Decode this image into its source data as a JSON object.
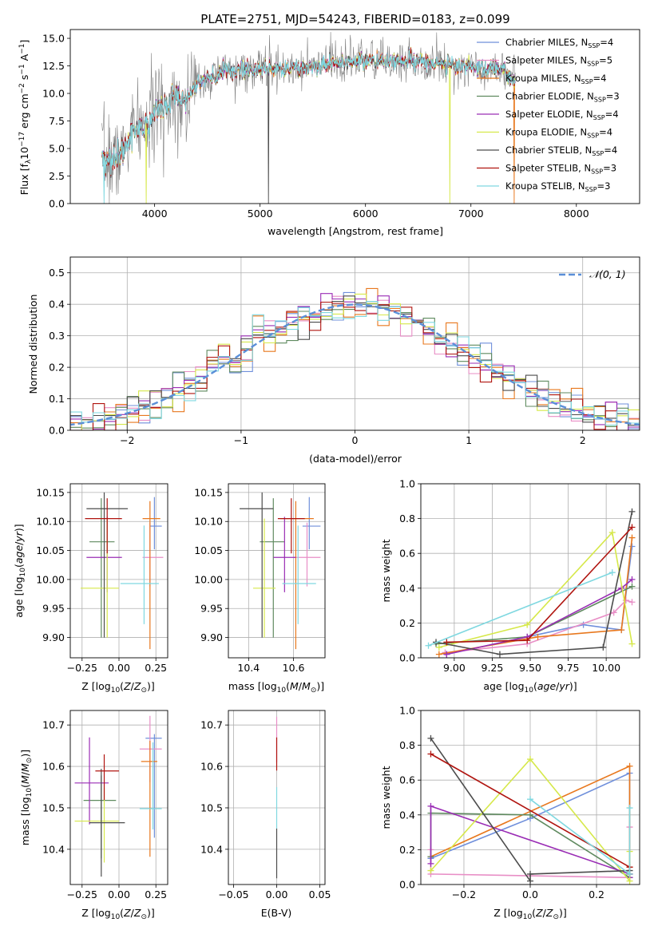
{
  "colors": {
    "blue": "#6f8fdb",
    "pink": "#e88ec6",
    "orange": "#e8781e",
    "green": "#5f8a5f",
    "purple": "#9a2db5",
    "yellow": "#d6e84a",
    "gray": "#4c4c4c",
    "red": "#b0140f",
    "cyan": "#7fd8e0",
    "normal": "#5b8fd8",
    "grid": "#b0b0b0"
  },
  "chart_data": [
    {
      "id": "spectrum",
      "type": "line",
      "title": "PLATE=2751, MJD=54243, FIBERID=0183, z=0.099",
      "xlabel": "wavelength [Angstrom, rest frame]",
      "ylabel": "Flux [f",
      "xlim": [
        3200,
        8600
      ],
      "ylim": [
        0,
        15.8
      ],
      "xticks": [
        4000,
        5000,
        6000,
        7000,
        8000
      ],
      "yticks": [
        "0.0",
        "2.5",
        "5.0",
        "7.5",
        "10.0",
        "12.5",
        "15.0"
      ],
      "grid": false,
      "legend_position": "right",
      "legend": [
        {
          "label": "Chabrier MILES, N",
          "n": "4",
          "color": "blue"
        },
        {
          "label": "Salpeter MILES, N",
          "n": "5",
          "color": "pink"
        },
        {
          "label": "Kroupa MILES, N",
          "n": "4",
          "color": "orange"
        },
        {
          "label": "Chabrier ELODIE, N",
          "n": "3",
          "color": "green"
        },
        {
          "label": "Salpeter ELODIE, N",
          "n": "4",
          "color": "purple"
        },
        {
          "label": "Kroupa ELODIE, N",
          "n": "4",
          "color": "yellow"
        },
        {
          "label": "Chabrier STELIB, N",
          "n": "4",
          "color": "gray"
        },
        {
          "label": "Salpeter STELIB, N",
          "n": "3",
          "color": "red"
        },
        {
          "label": "Kroupa STELIB, N",
          "n": "3",
          "color": "cyan"
        }
      ],
      "continuum": {
        "x": [
          3500,
          3600,
          3700,
          3800,
          3900,
          4000,
          4100,
          4200,
          4300,
          4400,
          4500,
          4700,
          5000,
          5300,
          5600,
          5900,
          6200,
          6500,
          6800,
          7100,
          7300,
          7400
        ],
        "y": [
          3.8,
          4.0,
          5.0,
          6.5,
          6.8,
          8.0,
          9.0,
          9.8,
          9.8,
          10.8,
          11.3,
          12.0,
          12.3,
          12.2,
          12.6,
          12.9,
          13.0,
          12.9,
          12.6,
          12.4,
          12.2,
          11.0
        ]
      },
      "sky_line_dips": [
        {
          "x": 3520,
          "series": "cyan"
        },
        {
          "x": 3920,
          "series": "yellow"
        },
        {
          "x": 5080,
          "series": "gray"
        },
        {
          "x": 6800,
          "series": "yellow"
        },
        {
          "x": 7410,
          "series": "orange"
        }
      ]
    },
    {
      "id": "residuals",
      "type": "histogram",
      "xlabel": "(data-model)/error",
      "ylabel": "Normed distribution",
      "xlim": [
        -2.5,
        2.5
      ],
      "ylim": [
        0,
        0.55
      ],
      "xticks": [
        "−2",
        "−1",
        "0",
        "1",
        "2"
      ],
      "yticks": [
        "0.0",
        "0.1",
        "0.2",
        "0.3",
        "0.4",
        "0.5"
      ],
      "grid": true,
      "bin_width": 0.1,
      "legend_position": "top-right",
      "legend": [
        {
          "label": "𝒩(0, 1)",
          "color": "normal"
        }
      ]
    },
    {
      "id": "age-vs-Z",
      "type": "errorbar",
      "xlabel": "Z [log",
      "ylabel": "age  [log",
      "xlim": [
        -0.33,
        0.33
      ],
      "ylim": [
        9.865,
        10.165
      ],
      "xticks": [
        "−0.25",
        "0.00",
        "0.25"
      ],
      "yticks": [
        "9.90",
        "9.95",
        "10.00",
        "10.05",
        "10.10",
        "10.15"
      ],
      "grid": true,
      "points": [
        {
          "color": "blue",
          "x": 0.24,
          "xerr": [
            0.03,
            0.05
          ],
          "y": 10.092,
          "yerr": [
            0.04,
            0.05
          ]
        },
        {
          "color": "pink",
          "x": 0.21,
          "xerr": [
            0.05,
            0.09
          ],
          "y": 10.038,
          "yerr": [
            0.05,
            0.06
          ]
        },
        {
          "color": "orange",
          "x": 0.21,
          "xerr": [
            0.05,
            0.07
          ],
          "y": 10.105,
          "yerr": [
            0.225,
            0.03
          ]
        },
        {
          "color": "green",
          "x": -0.12,
          "xerr": [
            0.08,
            0.09
          ],
          "y": 10.065,
          "yerr": [
            0.165,
            0.075
          ]
        },
        {
          "color": "purple",
          "x": -0.08,
          "xerr": [
            0.14,
            0.1
          ],
          "y": 10.038,
          "yerr": [
            0.06,
            0.07
          ]
        },
        {
          "color": "yellow",
          "x": -0.08,
          "xerr": [
            0.18,
            0.08
          ],
          "y": 9.985,
          "yerr": [
            0.085,
            0.12
          ]
        },
        {
          "color": "gray",
          "x": -0.1,
          "xerr": [
            0.12,
            0.16
          ],
          "y": 10.122,
          "yerr": [
            0.222,
            0.028
          ]
        },
        {
          "color": "red",
          "x": -0.08,
          "xerr": [
            0.15,
            0.1
          ],
          "y": 10.105,
          "yerr": [
            0.06,
            0.035
          ]
        },
        {
          "color": "cyan",
          "x": 0.17,
          "xerr": [
            0.16,
            0.1
          ],
          "y": 9.993,
          "yerr": [
            0.07,
            0.1
          ]
        }
      ]
    },
    {
      "id": "age-vs-mass",
      "type": "errorbar",
      "xlabel": "mass [log",
      "ylabel": "",
      "xlim": [
        10.31,
        10.74
      ],
      "ylim": [
        9.865,
        10.165
      ],
      "xticks": [
        "10.4",
        "10.6"
      ],
      "yticks": [
        "9.90",
        "9.95",
        "10.00",
        "10.05",
        "10.10",
        "10.15"
      ],
      "grid": true,
      "points": [
        {
          "color": "blue",
          "x": 10.67,
          "xerr": [
            0.03,
            0.05
          ],
          "y": 10.092,
          "yerr": [
            0.04,
            0.05
          ]
        },
        {
          "color": "pink",
          "x": 10.66,
          "xerr": [
            0.06,
            0.06
          ],
          "y": 10.038,
          "yerr": [
            0.05,
            0.06
          ]
        },
        {
          "color": "orange",
          "x": 10.61,
          "xerr": [
            0.07,
            0.08
          ],
          "y": 10.105,
          "yerr": [
            0.225,
            0.03
          ]
        },
        {
          "color": "green",
          "x": 10.51,
          "xerr": [
            0.06,
            0.05
          ],
          "y": 10.065,
          "yerr": [
            0.165,
            0.075
          ]
        },
        {
          "color": "purple",
          "x": 10.56,
          "xerr": [
            0.05,
            0.05
          ],
          "y": 10.038,
          "yerr": [
            0.06,
            0.07
          ]
        },
        {
          "color": "yellow",
          "x": 10.47,
          "xerr": [
            0.05,
            0.05
          ],
          "y": 9.985,
          "yerr": [
            0.085,
            0.12
          ]
        },
        {
          "color": "gray",
          "x": 10.46,
          "xerr": [
            0.1,
            0.05
          ],
          "y": 10.122,
          "yerr": [
            0.222,
            0.028
          ]
        },
        {
          "color": "red",
          "x": 10.59,
          "xerr": [
            0.06,
            0.06
          ],
          "y": 10.105,
          "yerr": [
            0.06,
            0.035
          ]
        },
        {
          "color": "cyan",
          "x": 10.62,
          "xerr": [
            0.07,
            0.08
          ],
          "y": 9.993,
          "yerr": [
            0.07,
            0.1
          ]
        }
      ]
    },
    {
      "id": "massweight-vs-age",
      "type": "line",
      "xlabel": "age  [log",
      "ylabel": "mass weight",
      "xlim": [
        8.78,
        10.22
      ],
      "ylim": [
        0,
        1.0
      ],
      "xticks": [
        "9.00",
        "9.25",
        "9.50",
        "9.75",
        "10.00"
      ],
      "yticks": [
        "0.0",
        "0.2",
        "0.4",
        "0.6",
        "0.8",
        "1.0"
      ],
      "grid": true,
      "series": [
        {
          "color": "blue",
          "x": [
            8.95,
            9.48,
            9.85,
            10.1,
            10.17
          ],
          "y": [
            0.02,
            0.12,
            0.19,
            0.16,
            0.64
          ]
        },
        {
          "color": "pink",
          "x": [
            8.94,
            9.48,
            10.05,
            10.13,
            10.17
          ],
          "y": [
            0.03,
            0.08,
            0.26,
            0.33,
            0.32
          ]
        },
        {
          "color": "orange",
          "x": [
            8.9,
            9.55,
            10.1,
            10.17
          ],
          "y": [
            0.02,
            0.12,
            0.16,
            0.69
          ]
        },
        {
          "color": "green",
          "x": [
            8.88,
            9.48,
            10.17
          ],
          "y": [
            0.08,
            0.12,
            0.41
          ]
        },
        {
          "color": "purple",
          "x": [
            8.95,
            9.48,
            10.1,
            10.17
          ],
          "y": [
            0.02,
            0.12,
            0.4,
            0.45
          ]
        },
        {
          "color": "yellow",
          "x": [
            8.9,
            9.48,
            10.04,
            10.17
          ],
          "y": [
            0.06,
            0.19,
            0.72,
            0.08
          ]
        },
        {
          "color": "gray",
          "x": [
            8.88,
            9.3,
            9.98,
            10.17
          ],
          "y": [
            0.09,
            0.02,
            0.06,
            0.84
          ]
        },
        {
          "color": "red",
          "x": [
            8.95,
            9.48,
            10.17
          ],
          "y": [
            0.09,
            0.1,
            0.75
          ]
        },
        {
          "color": "cyan",
          "x": [
            8.83,
            10.04
          ],
          "y": [
            0.07,
            0.49
          ]
        }
      ]
    },
    {
      "id": "mass-vs-Z",
      "type": "errorbar",
      "xlabel": "Z [log",
      "ylabel": "mass [log",
      "xlim": [
        -0.33,
        0.33
      ],
      "ylim": [
        10.315,
        10.735
      ],
      "xticks": [
        "−0.25",
        "0.00",
        "0.25"
      ],
      "yticks": [
        "10.4",
        "10.5",
        "10.6",
        "10.7"
      ],
      "grid": true,
      "points": [
        {
          "color": "blue",
          "x": 0.24,
          "xerr": [
            0.06,
            0.05
          ],
          "y": 10.668,
          "yerr": [
            0.24,
            0.01
          ]
        },
        {
          "color": "pink",
          "x": 0.21,
          "xerr": [
            0.07,
            0.08
          ],
          "y": 10.642,
          "yerr": [
            0.08,
            0.08
          ]
        },
        {
          "color": "orange",
          "x": 0.21,
          "xerr": [
            0.06,
            0.05
          ],
          "y": 10.612,
          "yerr": [
            0.23,
            0.05
          ]
        },
        {
          "color": "green",
          "x": -0.12,
          "xerr": [
            0.12,
            0.1
          ],
          "y": 10.518,
          "yerr": [
            0.14,
            0.06
          ]
        },
        {
          "color": "purple",
          "x": -0.2,
          "xerr": [
            0.1,
            0.13
          ],
          "y": 10.56,
          "yerr": [
            0.1,
            0.11
          ]
        },
        {
          "color": "yellow",
          "x": -0.1,
          "xerr": [
            0.2,
            0.1
          ],
          "y": 10.468,
          "yerr": [
            0.1,
            0.08
          ]
        },
        {
          "color": "gray",
          "x": -0.12,
          "xerr": [
            0.08,
            0.16
          ],
          "y": 10.464,
          "yerr": [
            0.13,
            0.13
          ]
        },
        {
          "color": "red",
          "x": -0.1,
          "xerr": [
            0.06,
            0.1
          ],
          "y": 10.589,
          "yerr": [
            0.07,
            0.04
          ]
        },
        {
          "color": "cyan",
          "x": 0.23,
          "xerr": [
            0.09,
            0.06
          ],
          "y": 10.498,
          "yerr": [
            0.05,
            0.16
          ]
        }
      ]
    },
    {
      "id": "mass-vs-EBV",
      "type": "errorbar",
      "xlabel": "E(B-V)",
      "ylabel": "",
      "xlim": [
        -0.056,
        0.056
      ],
      "ylim": [
        10.315,
        10.735
      ],
      "xticks": [
        "−0.05",
        "0.00",
        "0.05"
      ],
      "yticks": [
        "10.4",
        "10.5",
        "10.6",
        "10.7"
      ],
      "grid": true,
      "points": [
        {
          "color": "pink",
          "x": 0.0,
          "xerr": [
            0,
            0
          ],
          "y": 10.64,
          "yerr": [
            0.03,
            0.08
          ]
        },
        {
          "color": "red",
          "x": 0.0,
          "xerr": [
            0,
            0
          ],
          "y": 10.63,
          "yerr": [
            0.04,
            0.04
          ]
        },
        {
          "color": "cyan",
          "x": 0.0,
          "xerr": [
            0,
            0
          ],
          "y": 10.5,
          "yerr": [
            0.05,
            0.05
          ]
        },
        {
          "color": "gray",
          "x": 0.0,
          "xerr": [
            0,
            0
          ],
          "y": 10.39,
          "yerr": [
            0.06,
            0.06
          ]
        }
      ]
    },
    {
      "id": "massweight-vs-Z",
      "type": "line",
      "xlabel": "Z [log",
      "ylabel": "mass weight",
      "xlim": [
        -0.33,
        0.33
      ],
      "ylim": [
        0,
        1.0
      ],
      "xticks": [
        "−0.2",
        "0.0",
        "0.2"
      ],
      "yticks": [
        "0.0",
        "0.2",
        "0.4",
        "0.6",
        "0.8",
        "1.0"
      ],
      "grid": true,
      "series": [
        {
          "color": "blue",
          "x": [
            -0.3,
            0.0,
            0.3,
            0.3
          ],
          "y": [
            0.15,
            0.38,
            0.64,
            0.06
          ]
        },
        {
          "color": "pink",
          "x": [
            -0.3,
            -0.3,
            0.3,
            0.3
          ],
          "y": [
            0.2,
            0.06,
            0.04,
            0.33
          ]
        },
        {
          "color": "orange",
          "x": [
            -0.3,
            0.3,
            0.3
          ],
          "y": [
            0.16,
            0.68,
            0.1
          ]
        },
        {
          "color": "green",
          "x": [
            -0.3,
            -0.3,
            0.0,
            0.3
          ],
          "y": [
            0.16,
            0.41,
            0.4,
            0.04
          ]
        },
        {
          "color": "purple",
          "x": [
            -0.3,
            -0.3,
            0.3,
            0.3
          ],
          "y": [
            0.12,
            0.45,
            0.06,
            0.04
          ]
        },
        {
          "color": "yellow",
          "x": [
            -0.3,
            0.0,
            0.3,
            0.3
          ],
          "y": [
            0.08,
            0.72,
            0.02,
            0.19
          ]
        },
        {
          "color": "gray",
          "x": [
            -0.3,
            0.0,
            0.0,
            0.3
          ],
          "y": [
            0.84,
            0.02,
            0.06,
            0.08
          ]
        },
        {
          "color": "red",
          "x": [
            -0.3,
            0.3,
            0.3
          ],
          "y": [
            0.75,
            0.1,
            0.06
          ]
        },
        {
          "color": "cyan",
          "x": [
            0.0,
            0.3,
            0.3
          ],
          "y": [
            0.49,
            0.06,
            0.44
          ]
        }
      ]
    }
  ]
}
